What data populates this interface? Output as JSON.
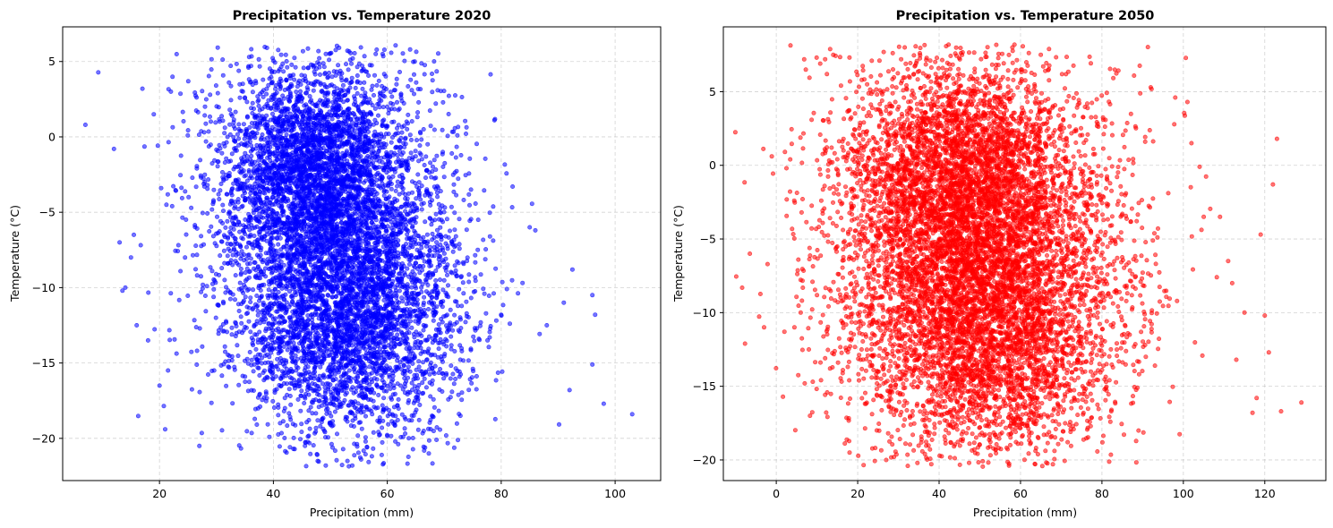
{
  "chart_data": [
    {
      "type": "scatter",
      "title": "Precipitation vs. Temperature 2020",
      "xlabel": "Precipitation (mm)",
      "ylabel": "Temperature (°C)",
      "xlim": [
        3,
        108
      ],
      "ylim": [
        -22.8,
        7.3
      ],
      "xticks": [
        20,
        40,
        60,
        80,
        100
      ],
      "xtick_labels": [
        "20",
        "40",
        "60",
        "80",
        "100"
      ],
      "yticks": [
        5,
        0,
        -5,
        -10,
        -15,
        -20
      ],
      "ytick_labels": [
        "5",
        "0",
        "−5",
        "−10",
        "−15",
        "−20"
      ],
      "grid": true,
      "color": "#0000ff",
      "dense_clusters": [
        {
          "x": 47,
          "y": -2,
          "sx": 8,
          "sy": 3.5,
          "n": 2600
        },
        {
          "x": 55,
          "y": -12,
          "sx": 9,
          "sy": 4,
          "n": 2600
        },
        {
          "x": 50,
          "y": -7,
          "sx": 11,
          "sy": 6,
          "n": 3000
        }
      ],
      "outlier_points": [
        {
          "x": 7,
          "y": 0.8
        },
        {
          "x": 12,
          "y": -0.8
        },
        {
          "x": 13,
          "y": -7
        },
        {
          "x": 13.5,
          "y": -10.2
        },
        {
          "x": 14,
          "y": -10
        },
        {
          "x": 15,
          "y": -8
        },
        {
          "x": 15.5,
          "y": -6.5
        },
        {
          "x": 16,
          "y": -12.5
        },
        {
          "x": 17,
          "y": 3.2
        },
        {
          "x": 18,
          "y": -13.5
        },
        {
          "x": 19,
          "y": 1.5
        },
        {
          "x": 20,
          "y": -16.5
        },
        {
          "x": 21,
          "y": -19.4
        },
        {
          "x": 21.5,
          "y": -15.5
        },
        {
          "x": 22,
          "y": 3
        },
        {
          "x": 27,
          "y": -20.5
        },
        {
          "x": 53,
          "y": -21.5
        },
        {
          "x": 64,
          "y": 5.8
        },
        {
          "x": 82,
          "y": -3.3
        },
        {
          "x": 85,
          "y": -6
        },
        {
          "x": 86,
          "y": -6.2
        },
        {
          "x": 88,
          "y": -12.5
        },
        {
          "x": 91,
          "y": -11
        },
        {
          "x": 92,
          "y": -16.8
        },
        {
          "x": 92.5,
          "y": -8.8
        },
        {
          "x": 96,
          "y": -10.5
        },
        {
          "x": 96.5,
          "y": -11.8
        },
        {
          "x": 96,
          "y": -15.1
        },
        {
          "x": 98,
          "y": -17.7
        },
        {
          "x": 103,
          "y": -18.4
        }
      ]
    },
    {
      "type": "scatter",
      "title": "Precipitation vs. Temperature 2050",
      "xlabel": "Precipitation (mm)",
      "ylabel": "Temperature (°C)",
      "xlim": [
        -13,
        135
      ],
      "ylim": [
        -21.4,
        9.4
      ],
      "xticks": [
        0,
        20,
        40,
        60,
        80,
        100,
        120
      ],
      "xtick_labels": [
        "0",
        "20",
        "40",
        "60",
        "80",
        "100",
        "120"
      ],
      "yticks": [
        5,
        0,
        -5,
        -10,
        -15,
        -20
      ],
      "ytick_labels": [
        "5",
        "0",
        "−5",
        "−10",
        "−15",
        "−20"
      ],
      "grid": true,
      "color": "#ff0000",
      "dense_clusters": [
        {
          "x": 45,
          "y": -1,
          "sx": 14,
          "sy": 4,
          "n": 3000
        },
        {
          "x": 52,
          "y": -11,
          "sx": 16,
          "sy": 4.5,
          "n": 3000
        },
        {
          "x": 50,
          "y": -6,
          "sx": 18,
          "sy": 6.5,
          "n": 3400
        }
      ],
      "outlier_points": [
        {
          "x": -6.5,
          "y": -6
        },
        {
          "x": -3,
          "y": -11
        },
        {
          "x": 2,
          "y": -11.3
        },
        {
          "x": 2.5,
          "y": -0.2
        },
        {
          "x": 6,
          "y": -10
        },
        {
          "x": 7,
          "y": -14.8
        },
        {
          "x": 8,
          "y": -12.5
        },
        {
          "x": 12,
          "y": 7.2
        },
        {
          "x": 14,
          "y": 7.5
        },
        {
          "x": 18,
          "y": -19.5
        },
        {
          "x": 27,
          "y": -20
        },
        {
          "x": 58,
          "y": 8
        },
        {
          "x": 98,
          "y": 4.6
        },
        {
          "x": 101,
          "y": 4.3
        },
        {
          "x": 102,
          "y": 1.5
        },
        {
          "x": 104,
          "y": -0.1
        },
        {
          "x": 105,
          "y": -3.5
        },
        {
          "x": 109,
          "y": -3.5
        },
        {
          "x": 111,
          "y": -6.5
        },
        {
          "x": 112,
          "y": -8
        },
        {
          "x": 113,
          "y": -13.2
        },
        {
          "x": 115,
          "y": -10
        },
        {
          "x": 117,
          "y": -16.8
        },
        {
          "x": 118,
          "y": -15.8
        },
        {
          "x": 119,
          "y": -4.7
        },
        {
          "x": 120,
          "y": -10.2
        },
        {
          "x": 121,
          "y": -12.7
        },
        {
          "x": 122,
          "y": -1.3
        },
        {
          "x": 123,
          "y": 1.8
        },
        {
          "x": 124,
          "y": -16.7
        },
        {
          "x": 129,
          "y": -16.1
        }
      ]
    }
  ]
}
